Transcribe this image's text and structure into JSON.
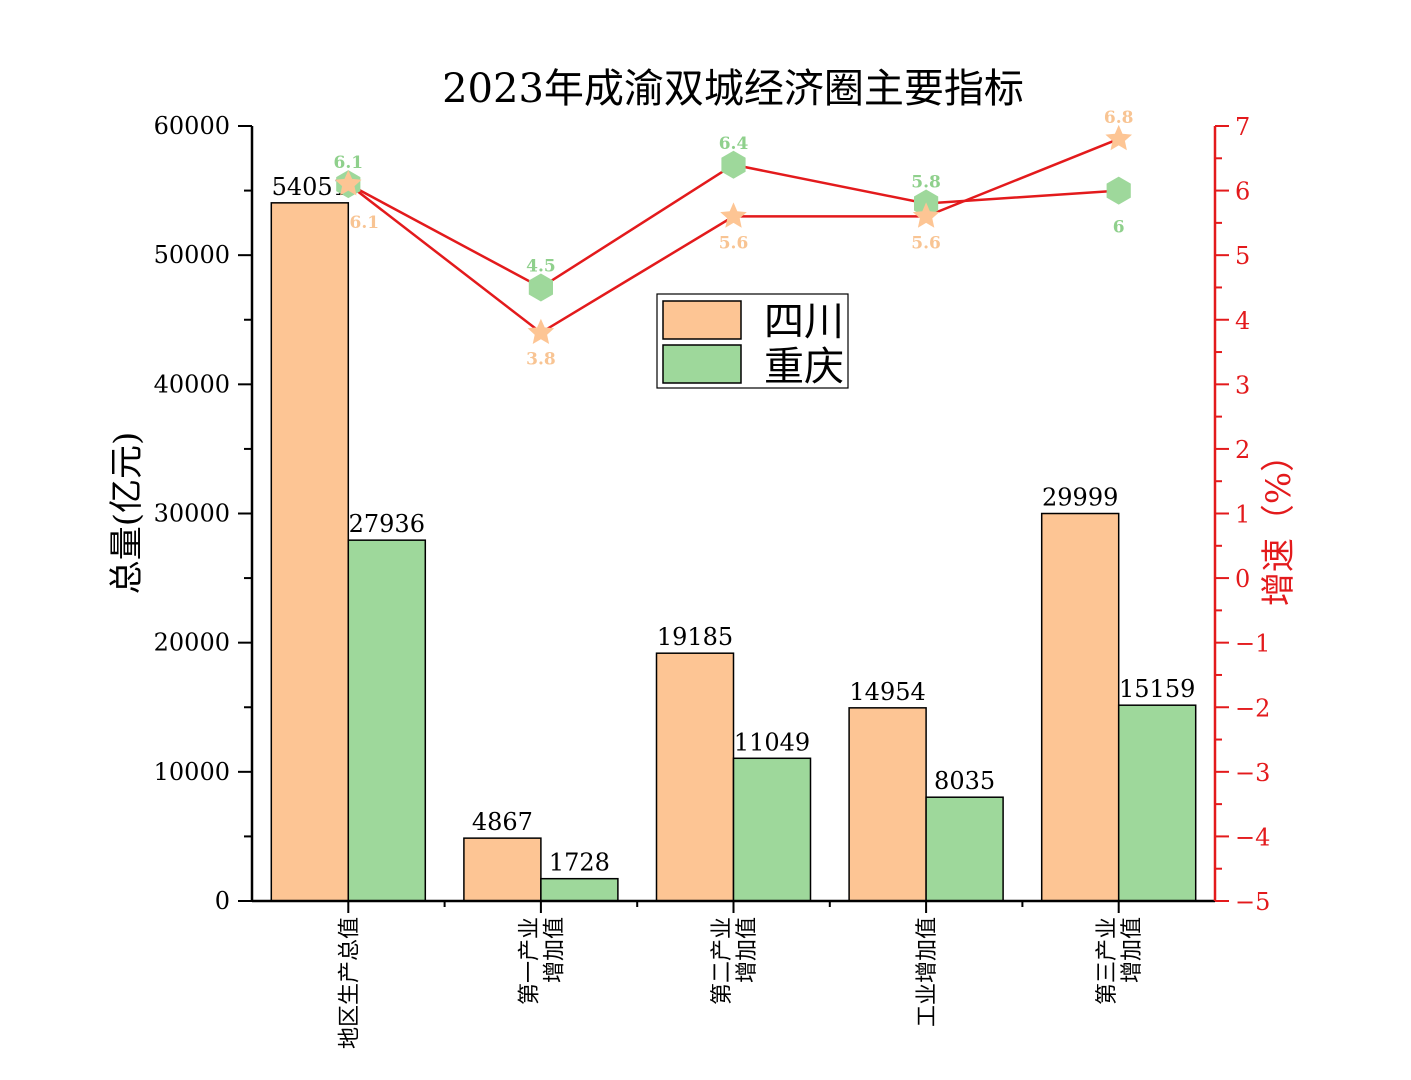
{
  "colors": {
    "sichuan": "#fdc594",
    "chongqing": "#9ed89b",
    "line": "#e31a1c",
    "axis": "#000000",
    "sichuan_label": "#f8c493",
    "chongqing_label": "#8fd08c"
  },
  "chart_data": {
    "type": "bar",
    "title": "2023年成渝双城经济圈主要指标",
    "ylabel": "总量(亿元)",
    "y2label": "增速（%）",
    "ylim": [
      0,
      60000
    ],
    "y2lim": [
      -5,
      7
    ],
    "yticks": [
      0,
      10000,
      20000,
      30000,
      40000,
      50000,
      60000
    ],
    "y2ticks": [
      -5,
      -4,
      -3,
      -2,
      -1,
      0,
      1,
      2,
      3,
      4,
      5,
      6,
      7
    ],
    "categories": [
      [
        "地区生产总值"
      ],
      [
        "第一产业",
        "增加值"
      ],
      [
        "第二产业",
        "增加值"
      ],
      [
        "工业增加值"
      ],
      [
        "第三产业",
        "增加值"
      ]
    ],
    "series": [
      {
        "name": "四川",
        "values": [
          54051,
          4867,
          19185,
          14954,
          29999
        ],
        "labels": [
          "54051",
          "4867",
          "19185",
          "14954",
          "29999"
        ]
      },
      {
        "name": "重庆",
        "values": [
          27936,
          1728,
          11049,
          8035,
          15159
        ],
        "labels": [
          "27936",
          "1728",
          "11049",
          "8035",
          "15159"
        ]
      }
    ],
    "growth_series": [
      {
        "name": "四川",
        "marker": "star",
        "values": [
          6.1,
          3.8,
          5.6,
          5.6,
          6.8
        ],
        "labels": [
          "6.1",
          "3.8",
          "5.6",
          "5.6",
          "6.8"
        ]
      },
      {
        "name": "重庆",
        "marker": "hexagon",
        "values": [
          6.1,
          4.5,
          6.4,
          5.8,
          6.0
        ],
        "labels": [
          "6.1",
          "4.5",
          "6.4",
          "5.8",
          "6"
        ]
      }
    ],
    "legend": {
      "position": "center",
      "entries": [
        "四川",
        "重庆"
      ]
    },
    "grid": false
  }
}
